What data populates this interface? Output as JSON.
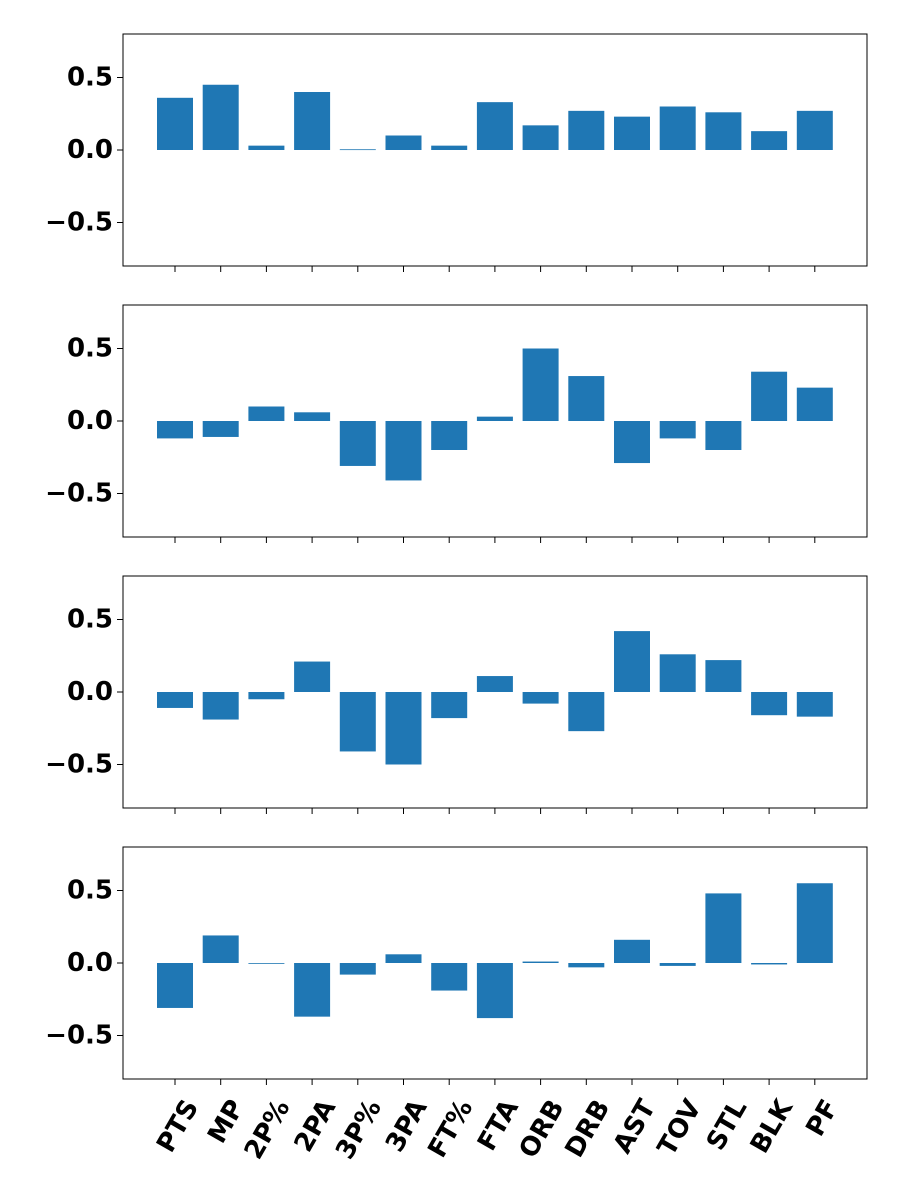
{
  "chart_data": {
    "type": "bar",
    "categories": [
      "PTS",
      "MP",
      "2P%",
      "2PA",
      "3P%",
      "3PA",
      "FT%",
      "FTA",
      "ORB",
      "DRB",
      "AST",
      "TOV",
      "STL",
      "BLK",
      "PF"
    ],
    "ylim": [
      -0.8,
      0.8
    ],
    "yticks": [
      -0.5,
      0.0,
      0.5
    ],
    "ytick_labels": [
      "−0.5",
      "0.0",
      "0.5"
    ],
    "grid": false,
    "bar_color": "#1f77b4",
    "series": [
      {
        "values": [
          0.36,
          0.45,
          0.03,
          0.4,
          0.005,
          0.1,
          0.03,
          0.33,
          0.17,
          0.27,
          0.23,
          0.3,
          0.26,
          0.13,
          0.27
        ]
      },
      {
        "values": [
          -0.12,
          -0.11,
          0.1,
          0.06,
          -0.31,
          -0.41,
          -0.2,
          0.03,
          0.5,
          0.31,
          -0.29,
          -0.12,
          -0.2,
          0.34,
          0.23
        ]
      },
      {
        "values": [
          -0.11,
          -0.19,
          -0.05,
          0.21,
          -0.41,
          -0.5,
          -0.18,
          0.11,
          -0.08,
          -0.27,
          0.42,
          0.26,
          0.22,
          -0.16,
          -0.17
        ]
      },
      {
        "values": [
          -0.31,
          0.19,
          0.0,
          -0.37,
          -0.08,
          0.06,
          -0.19,
          -0.38,
          0.01,
          -0.03,
          0.16,
          -0.02,
          0.48,
          -0.01,
          0.55
        ]
      }
    ]
  }
}
